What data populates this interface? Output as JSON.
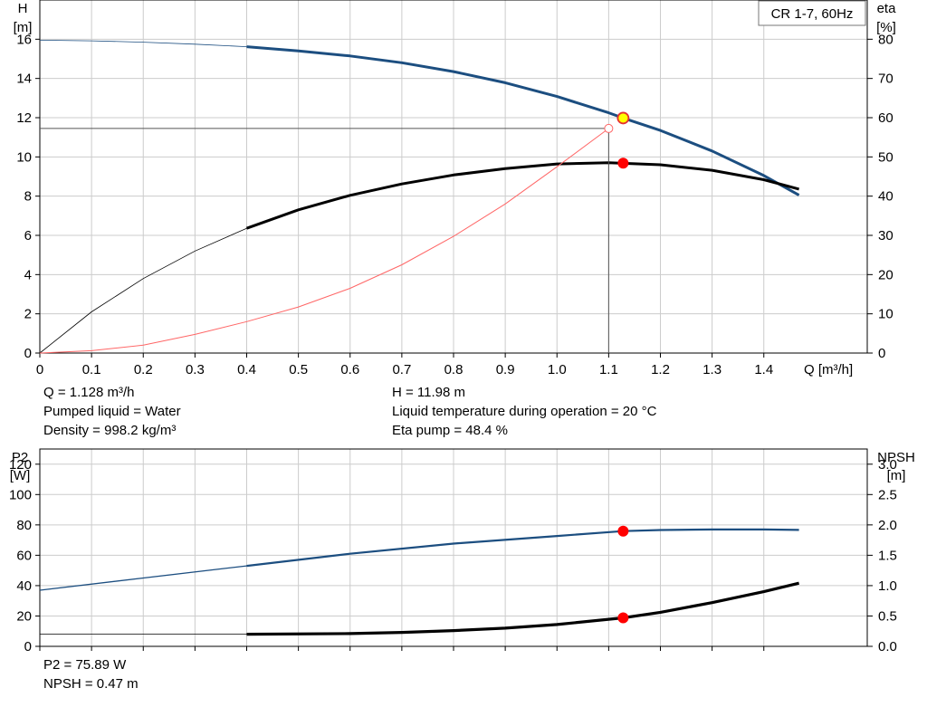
{
  "legend_box": "CR 1-7, 60Hz",
  "colors": {
    "head": "#1c4e80",
    "eta": "#000000",
    "system": "#ff6666",
    "p2": "#1c4e80",
    "npsh": "#000000",
    "marker": "#ff0000",
    "marker_op": "#ffff00",
    "grid": "#cccccc"
  },
  "top_left_axis_label": [
    "H",
    "[m]"
  ],
  "top_right_axis_label": [
    "eta",
    "[%]"
  ],
  "x_axis_label": "Q [m³/h]",
  "bottom_left_axis_label": [
    "P2",
    "[W]"
  ],
  "bottom_right_axis_label": [
    "NPSH",
    "[m]"
  ],
  "info_mid": {
    "q": "Q = 1.128 m³/h",
    "liquid": "Pumped liquid = Water",
    "density": "Density = 998.2 kg/m³",
    "h": "H = 11.98 m",
    "temp": "Liquid temperature during operation = 20 °C",
    "eta": "Eta pump = 48.4 %"
  },
  "info_bottom": {
    "p2": "P2 = 75.89 W",
    "npsh": "NPSH = 0.47 m"
  },
  "chart_data": [
    {
      "type": "line",
      "x_ticks": [
        "0",
        "0.1",
        "0.2",
        "0.3",
        "0.4",
        "0.5",
        "0.6",
        "0.7",
        "0.8",
        "0.9",
        "1.0",
        "1.1",
        "1.2",
        "1.3",
        "1.4"
      ],
      "xlim": [
        0,
        1.6
      ],
      "y_left_ticks": [
        "0",
        "2",
        "4",
        "6",
        "8",
        "10",
        "12",
        "14",
        "16"
      ],
      "ylim_left": [
        0,
        18
      ],
      "y_right_ticks": [
        "0",
        "10",
        "20",
        "30",
        "40",
        "50",
        "60",
        "70",
        "80"
      ],
      "ylim_right": [
        0,
        90
      ],
      "series": [
        {
          "key": "head",
          "axis": "left",
          "x": [
            0,
            0.1,
            0.2,
            0.3,
            0.4,
            0.5,
            0.6,
            0.7,
            0.8,
            0.9,
            1.0,
            1.1,
            1.128,
            1.2,
            1.3,
            1.4,
            1.468
          ],
          "y": [
            15.95,
            15.92,
            15.85,
            15.75,
            15.62,
            15.4,
            15.15,
            14.8,
            14.35,
            13.78,
            13.08,
            12.25,
            11.98,
            11.35,
            10.3,
            9.05,
            8.05
          ],
          "thin_until": 0.4
        },
        {
          "key": "eta",
          "axis": "right",
          "x": [
            0,
            0.1,
            0.2,
            0.3,
            0.4,
            0.5,
            0.6,
            0.7,
            0.8,
            0.9,
            1.0,
            1.1,
            1.2,
            1.3,
            1.4,
            1.468
          ],
          "y": [
            0,
            10.5,
            19,
            26,
            31.8,
            36.5,
            40.2,
            43.1,
            45.4,
            47.0,
            48.2,
            48.5,
            48.0,
            46.6,
            44.2,
            41.8
          ],
          "thin_until": 0.4
        },
        {
          "key": "system",
          "axis": "left",
          "x": [
            0,
            0.1,
            0.2,
            0.3,
            0.4,
            0.5,
            0.6,
            0.7,
            0.8,
            0.9,
            1.0,
            1.1
          ],
          "y": [
            0,
            0.12,
            0.4,
            0.95,
            1.6,
            2.35,
            3.3,
            4.5,
            5.95,
            7.6,
            9.5,
            11.45
          ]
        }
      ],
      "operating_point": {
        "x": 1.128,
        "head": 11.98,
        "eta": 48.4
      },
      "system_end": {
        "x": 1.1,
        "y": 11.45
      }
    },
    {
      "type": "line",
      "x_ticks": [
        "0",
        "0.1",
        "0.2",
        "0.3",
        "0.4",
        "0.5",
        "0.6",
        "0.7",
        "0.8",
        "0.9",
        "1.0",
        "1.1",
        "1.2",
        "1.3",
        "1.4"
      ],
      "xlim": [
        0,
        1.6
      ],
      "y_left_ticks": [
        "0",
        "20",
        "40",
        "60",
        "80",
        "100",
        "120"
      ],
      "ylim_left": [
        0,
        130
      ],
      "y_right_ticks": [
        "0.0",
        "0.5",
        "1.0",
        "1.5",
        "2.0",
        "2.5",
        "3.0"
      ],
      "ylim_right": [
        0,
        3.25
      ],
      "series": [
        {
          "key": "p2",
          "axis": "left",
          "x": [
            0,
            0.2,
            0.4,
            0.6,
            0.8,
            1.0,
            1.128,
            1.2,
            1.3,
            1.4,
            1.468
          ],
          "y": [
            37,
            45,
            53,
            61,
            67.7,
            72.7,
            75.89,
            76.6,
            77.0,
            77.0,
            76.7
          ],
          "thin_until": 0.4
        },
        {
          "key": "npsh",
          "axis": "right",
          "x": [
            0,
            0.4,
            0.6,
            0.7,
            0.8,
            0.9,
            1.0,
            1.128,
            1.2,
            1.3,
            1.4,
            1.468
          ],
          "y": [
            0.2,
            0.2,
            0.21,
            0.23,
            0.26,
            0.3,
            0.36,
            0.47,
            0.56,
            0.72,
            0.9,
            1.04
          ],
          "thin_until": 0.4
        }
      ],
      "operating_point": {
        "x": 1.128,
        "p2": 75.89,
        "npsh": 0.47
      }
    }
  ]
}
